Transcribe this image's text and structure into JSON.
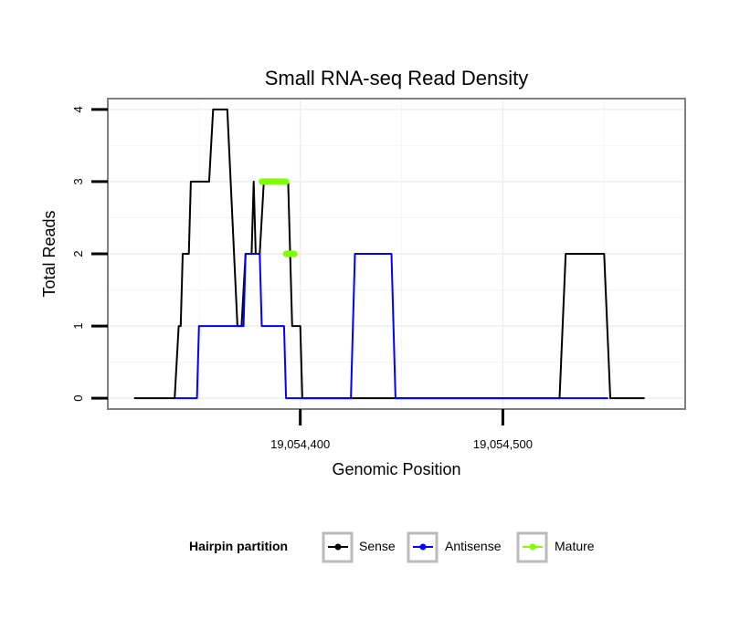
{
  "chart_data": {
    "type": "line",
    "title": "Small RNA-seq Read Density",
    "xlabel": "Genomic Position",
    "ylabel": "Total Reads",
    "xlim": [
      19054305,
      19054590
    ],
    "ylim": [
      -0.15,
      4.15
    ],
    "x_ticks": [
      {
        "value": 19054400,
        "label": "19,054,400"
      },
      {
        "value": 19054500,
        "label": "19,054,500"
      }
    ],
    "y_ticks": [
      {
        "value": 0,
        "label": "0"
      },
      {
        "value": 1,
        "label": "1"
      },
      {
        "value": 2,
        "label": "2"
      },
      {
        "value": 3,
        "label": "3"
      },
      {
        "value": 4,
        "label": "4"
      }
    ],
    "grid": true,
    "legend": {
      "title": "Hairpin partition",
      "position": "bottom",
      "entries": [
        "Sense",
        "Antisense",
        "Mature"
      ]
    },
    "series": [
      {
        "name": "Sense",
        "color": "#000000",
        "points": [
          [
            19054318,
            0
          ],
          [
            19054338,
            0
          ],
          [
            19054340,
            1
          ],
          [
            19054341,
            1
          ],
          [
            19054342,
            2
          ],
          [
            19054345,
            2
          ],
          [
            19054346,
            3
          ],
          [
            19054355,
            3
          ],
          [
            19054357,
            4
          ],
          [
            19054364,
            4
          ],
          [
            19054369,
            1
          ],
          [
            19054371,
            1
          ],
          [
            19054373,
            2
          ],
          [
            19054376,
            2
          ],
          [
            19054377,
            3
          ],
          [
            19054378,
            2
          ],
          [
            19054380,
            2
          ],
          [
            19054382,
            3
          ],
          [
            19054394,
            3
          ],
          [
            19054396,
            1
          ],
          [
            19054400,
            1
          ],
          [
            19054401,
            0
          ],
          [
            19054528,
            0
          ],
          [
            19054531,
            2
          ],
          [
            19054550,
            2
          ],
          [
            19054553,
            0
          ],
          [
            19054570,
            0
          ]
        ]
      },
      {
        "name": "Antisense",
        "color": "#0000ff",
        "points": [
          [
            19054338,
            0
          ],
          [
            19054349,
            0
          ],
          [
            19054350,
            1
          ],
          [
            19054372,
            1
          ],
          [
            19054373,
            2
          ],
          [
            19054380,
            2
          ],
          [
            19054381,
            1
          ],
          [
            19054392,
            1
          ],
          [
            19054393,
            0
          ],
          [
            19054425,
            0
          ],
          [
            19054427,
            2
          ],
          [
            19054445,
            2
          ],
          [
            19054447,
            0
          ],
          [
            19054552,
            0
          ]
        ]
      },
      {
        "name": "Mature",
        "color": "#7fff00",
        "segments": [
          {
            "x_start": 19054381,
            "x_end": 19054393,
            "y": 3
          },
          {
            "x_start": 19054393,
            "x_end": 19054397,
            "y": 2
          }
        ]
      }
    ]
  }
}
